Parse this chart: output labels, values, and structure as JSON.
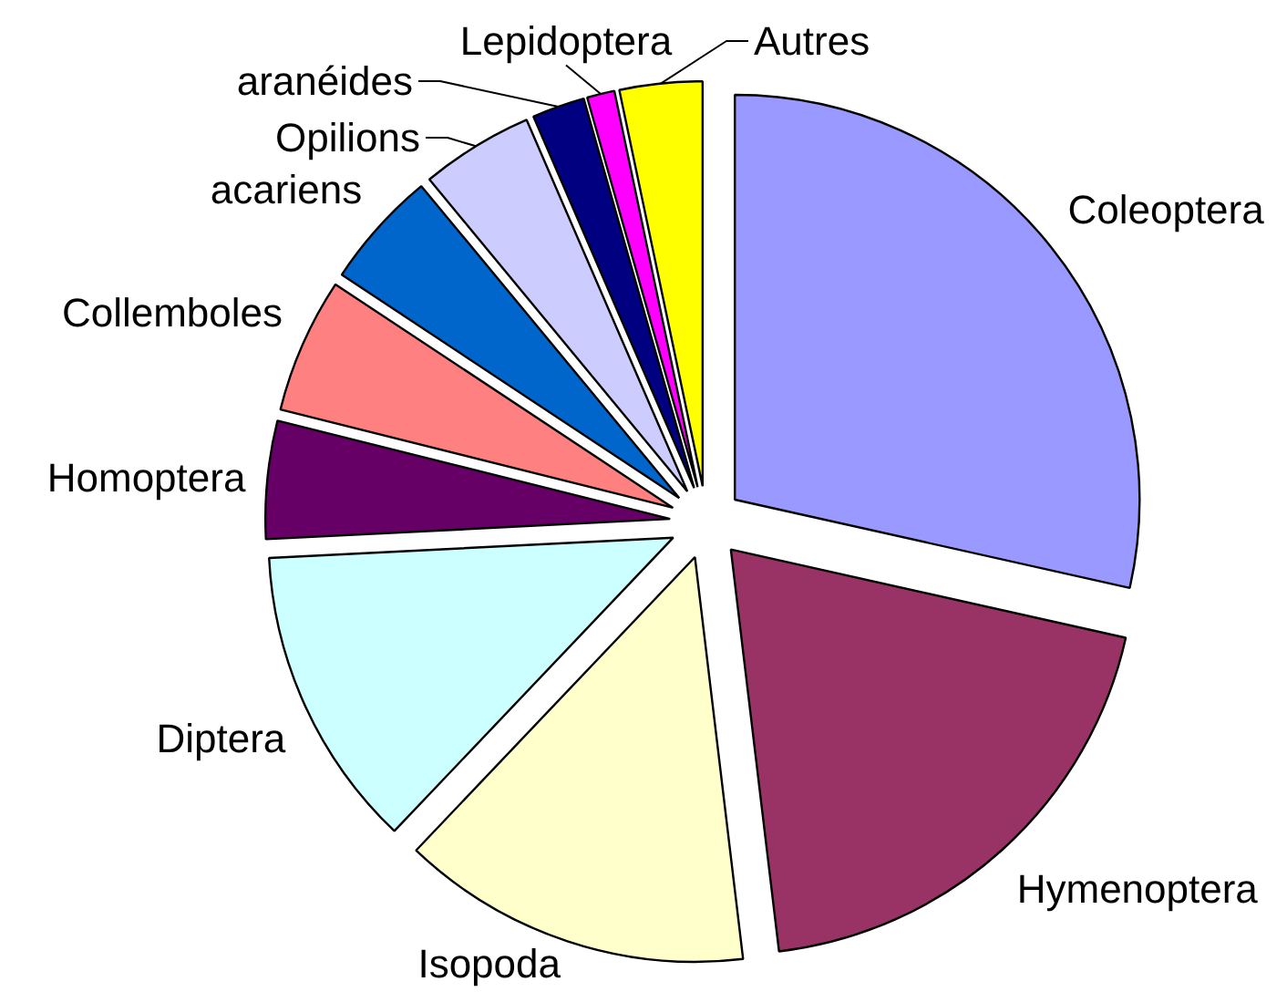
{
  "chart_data": {
    "type": "pie",
    "categories": [
      "Coleoptera",
      "Hymenoptera",
      "Isopoda",
      "Diptera",
      "Homoptera",
      "Collemboles",
      "acariens",
      "Opilions",
      "aranéides",
      "Lepidoptera",
      "Autres"
    ],
    "values": [
      28.5,
      19.6,
      14.0,
      12.1,
      4.7,
      5.4,
      4.7,
      4.5,
      2.1,
      1.1,
      3.3
    ],
    "colors": [
      "#9999ff",
      "#993366",
      "#ffffcc",
      "#ccffff",
      "#660066",
      "#ff8080",
      "#0066cc",
      "#ccccff",
      "#000080",
      "#ff00ff",
      "#ffff00"
    ]
  }
}
